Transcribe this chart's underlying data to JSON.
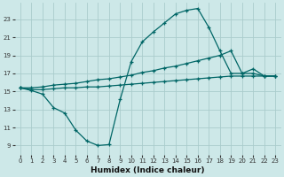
{
  "xlabel": "Humidex (Indice chaleur)",
  "bg_color": "#cde8e8",
  "grid_color": "#aacccc",
  "line_color": "#006666",
  "xlim": [
    -0.5,
    23.5
  ],
  "ylim": [
    8.0,
    24.8
  ],
  "yticks": [
    9,
    11,
    13,
    15,
    17,
    19,
    21,
    23
  ],
  "xticks": [
    0,
    1,
    2,
    3,
    4,
    5,
    6,
    7,
    8,
    9,
    10,
    11,
    12,
    13,
    14,
    15,
    16,
    17,
    18,
    19,
    20,
    21,
    22,
    23
  ],
  "line1_x": [
    0,
    1,
    2,
    3,
    4,
    5,
    6,
    7,
    8,
    9,
    10,
    11,
    12,
    13,
    14,
    15,
    16,
    17,
    18,
    19,
    20,
    21,
    22,
    23
  ],
  "line1_y": [
    15.4,
    15.1,
    14.7,
    13.2,
    12.6,
    10.7,
    9.5,
    9.0,
    9.1,
    14.1,
    18.3,
    20.5,
    21.6,
    22.6,
    23.6,
    24.0,
    24.2,
    22.1,
    19.5,
    17.0,
    17.0,
    17.5,
    16.7,
    16.7
  ],
  "line2_x": [
    0,
    1,
    2,
    3,
    4,
    5,
    6,
    7,
    8,
    9,
    10,
    11,
    12,
    13,
    14,
    15,
    16,
    17,
    18,
    19,
    20,
    21,
    22,
    23
  ],
  "line2_y": [
    15.4,
    15.4,
    15.5,
    15.7,
    15.8,
    15.9,
    16.1,
    16.3,
    16.4,
    16.6,
    16.8,
    17.1,
    17.3,
    17.6,
    17.8,
    18.1,
    18.4,
    18.7,
    19.0,
    19.5,
    17.0,
    17.0,
    16.7,
    16.7
  ],
  "line3_x": [
    0,
    1,
    2,
    3,
    4,
    5,
    6,
    7,
    8,
    9,
    10,
    11,
    12,
    13,
    14,
    15,
    16,
    17,
    18,
    19,
    20,
    21,
    22,
    23
  ],
  "line3_y": [
    15.4,
    15.2,
    15.2,
    15.3,
    15.4,
    15.4,
    15.5,
    15.5,
    15.6,
    15.7,
    15.8,
    15.9,
    16.0,
    16.1,
    16.2,
    16.3,
    16.4,
    16.5,
    16.6,
    16.7,
    16.7,
    16.7,
    16.7,
    16.7
  ]
}
